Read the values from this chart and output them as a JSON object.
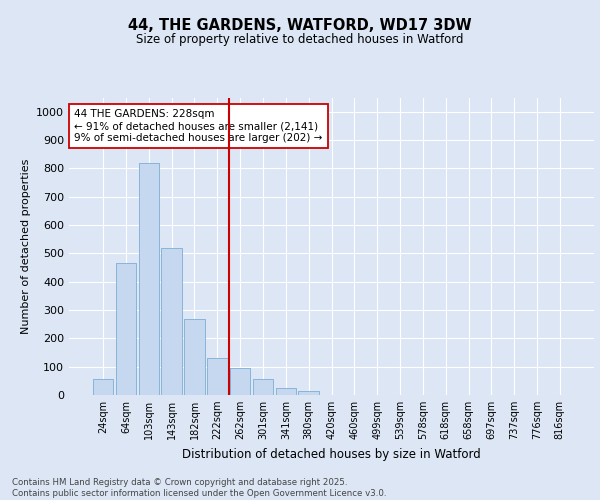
{
  "title1": "44, THE GARDENS, WATFORD, WD17 3DW",
  "title2": "Size of property relative to detached houses in Watford",
  "xlabel": "Distribution of detached houses by size in Watford",
  "ylabel": "Number of detached properties",
  "categories": [
    "24sqm",
    "64sqm",
    "103sqm",
    "143sqm",
    "182sqm",
    "222sqm",
    "262sqm",
    "301sqm",
    "341sqm",
    "380sqm",
    "420sqm",
    "460sqm",
    "499sqm",
    "539sqm",
    "578sqm",
    "618sqm",
    "658sqm",
    "697sqm",
    "737sqm",
    "776sqm",
    "816sqm"
  ],
  "values": [
    55,
    465,
    820,
    520,
    270,
    130,
    95,
    55,
    25,
    15,
    0,
    0,
    0,
    0,
    0,
    0,
    0,
    0,
    0,
    0,
    0
  ],
  "bar_color": "#c5d8f0",
  "bar_edge_color": "#7aadd4",
  "vline_x": 5.5,
  "vline_color": "#cc0000",
  "annotation_text": "44 THE GARDENS: 228sqm\n← 91% of detached houses are smaller (2,141)\n9% of semi-detached houses are larger (202) →",
  "annotation_box_color": "#ffffff",
  "annotation_box_edge": "#cc0000",
  "footer": "Contains HM Land Registry data © Crown copyright and database right 2025.\nContains public sector information licensed under the Open Government Licence v3.0.",
  "bg_color": "#dce6f5",
  "plot_bg_color": "#dce6f5",
  "ylim": [
    0,
    1050
  ],
  "yticks": [
    0,
    100,
    200,
    300,
    400,
    500,
    600,
    700,
    800,
    900,
    1000
  ]
}
